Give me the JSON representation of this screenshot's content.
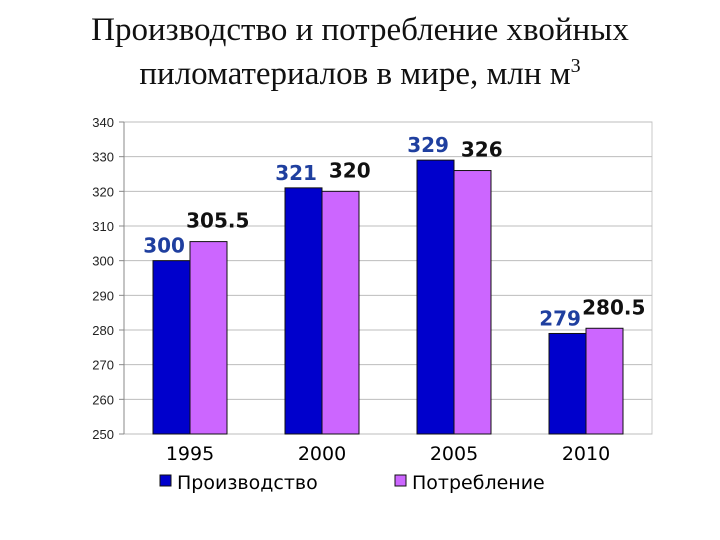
{
  "title": {
    "line1": "Производство и потребление хвойных",
    "line2": "пиломатериалов в мире, млн м",
    "superscript": "3"
  },
  "chart_data": {
    "type": "bar",
    "categories": [
      "1995",
      "2000",
      "2005",
      "2010"
    ],
    "series": [
      {
        "name": "Производство",
        "values": [
          300,
          321,
          329,
          279
        ],
        "color": "#0000CC",
        "label_color": "#1f3f9f"
      },
      {
        "name": "Потребление",
        "values": [
          305.5,
          320,
          326,
          280.5
        ],
        "color": "#CC66FF",
        "label_color": "#111111"
      }
    ],
    "data_labels": [
      [
        "300",
        "321",
        "329",
        "279"
      ],
      [
        "305.5",
        "320",
        "326",
        "280.5"
      ]
    ],
    "ylim": [
      250,
      340
    ],
    "yticks": [
      "250",
      "260",
      "270",
      "280",
      "290",
      "300",
      "310",
      "320",
      "330",
      "340"
    ],
    "legend_position": "bottom",
    "grid": true
  }
}
